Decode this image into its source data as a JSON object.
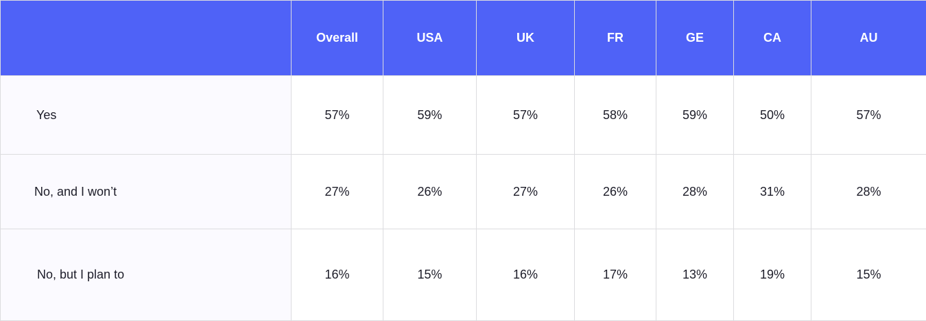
{
  "chart_data": {
    "type": "table",
    "columns": [
      "",
      "Overall",
      "USA",
      "UK",
      "FR",
      "GE",
      "CA",
      "AU"
    ],
    "rows": [
      {
        "label": "Yes",
        "values": [
          "57%",
          "59%",
          "57%",
          "58%",
          "59%",
          "50%",
          "57%"
        ]
      },
      {
        "label": "No, and I won’t",
        "values": [
          "27%",
          "26%",
          "27%",
          "26%",
          "28%",
          "31%",
          "28%"
        ]
      },
      {
        "label": "No, but I plan to",
        "values": [
          "16%",
          "15%",
          "16%",
          "17%",
          "13%",
          "19%",
          "15%"
        ]
      }
    ]
  },
  "colors": {
    "header_bg": "#4f62f7",
    "header_text": "#ffffff",
    "label_column_bg": "#fbfaff",
    "border": "#dcdcdf"
  }
}
